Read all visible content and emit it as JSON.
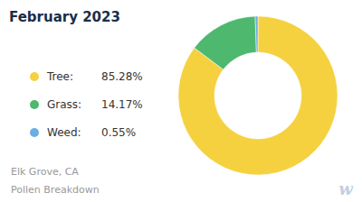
{
  "chart_data": {
    "type": "donut",
    "title": "February 2023",
    "subtitle": [
      "Elk Grove, CA",
      "Pollen Breakdown"
    ],
    "annotations": [
      "w"
    ],
    "categories": [
      "Tree:",
      "Grass:",
      "Weed:"
    ],
    "values": [
      85.28,
      14.17,
      0.55
    ],
    "value_labels": [
      "85.28%",
      "14.17%",
      "0.55%"
    ],
    "colors": [
      "#f5d140",
      "#4db86e",
      "#6aaee8"
    ],
    "legend": "left"
  }
}
